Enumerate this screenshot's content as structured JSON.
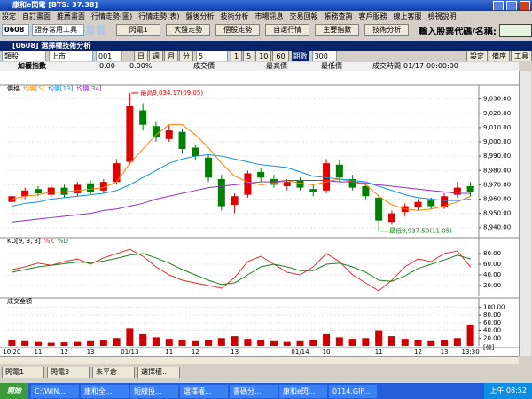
{
  "window": {
    "title": "康和e閃電 [BTS: 37.38]"
  },
  "menu": [
    "設定",
    "自訂畫面",
    "推薦畫面",
    "行情走勢(圖)",
    "行情走勢(表)",
    "盤後分析",
    "技術分析",
    "市場訊息",
    "交易回報",
    "帳務查詢",
    "客戶服務",
    "線上客服",
    "檢視說明"
  ],
  "toolbar": {
    "code": "0608",
    "tools": "證券常用工具",
    "buttons": [
      "閃電1",
      "大盤走勢",
      "個股走勢",
      "自選行情",
      "主要指數",
      "技術分析"
    ],
    "search_label": "輸入股票代碼/名稱:"
  },
  "panel": {
    "title": "[0608] 選擇權技術分析",
    "sector": "類股",
    "market": "上市",
    "code": "001",
    "periods": [
      "日",
      "週",
      "月",
      "分"
    ],
    "interval": "5",
    "minutes": [
      "1",
      "5",
      "10",
      "60"
    ],
    "count_label": "期數",
    "count": "300",
    "actions": [
      "設定",
      "備序",
      "工具"
    ]
  },
  "info": {
    "index_label": "加權指數",
    "change": "0.00",
    "pct": "0.00%",
    "price_label": "成交價",
    "high_label": "最高價",
    "low_label": "最低價",
    "time_label": "成交時間",
    "time": "01/17-00:00:00"
  },
  "chart_data": [
    {
      "type": "candlestick",
      "legend_label": "價格",
      "up_color": "#e00000",
      "down_color": "#008000",
      "categories": [
        "10:20",
        null,
        "11",
        null,
        "12",
        null,
        "13",
        null,
        null,
        "01/13",
        null,
        null,
        "11",
        null,
        "12",
        null,
        null,
        "13",
        null,
        null,
        null,
        null,
        "01/14",
        null,
        "10",
        null,
        null,
        null,
        "11",
        null,
        null,
        "12",
        null,
        "13",
        null,
        "13:30"
      ],
      "open": [
        8958,
        8962,
        8967,
        8963,
        8968,
        8964,
        8971,
        8966,
        8972,
        8986,
        9022,
        9011,
        9002,
        9007,
        8996,
        8989,
        8974,
        8956,
        8963,
        8979,
        8974,
        8969,
        8973,
        8967,
        8966,
        8984,
        8974,
        8969,
        8961,
        8944,
        8951,
        8954,
        8959,
        8954,
        8963,
        8969
      ],
      "high": [
        8964,
        8968,
        8969,
        8970,
        8970,
        8972,
        8973,
        8974,
        8988,
        9034.17,
        9027,
        9014,
        9012,
        9009,
        8998,
        8991,
        8977,
        8964,
        8980,
        8982,
        8977,
        8974,
        8975,
        8970,
        8988,
        8987,
        8977,
        8971,
        8963,
        8952,
        8957,
        8960,
        8961,
        8964,
        8972,
        8972
      ],
      "low": [
        8955,
        8960,
        8962,
        8961,
        8961,
        8962,
        8963,
        8964,
        8970,
        8984,
        9008,
        9000,
        9000,
        8992,
        8987,
        8972,
        8952,
        8950,
        8961,
        8972,
        8968,
        8966,
        8966,
        8962,
        8964,
        8972,
        8966,
        8960,
        8937.5,
        8942,
        8948,
        8952,
        8953,
        8953,
        8961,
        8962
      ],
      "close": [
        8962,
        8966,
        8964,
        8968,
        8963,
        8970,
        8965,
        8972,
        8985,
        9025,
        9012,
        9003,
        9008,
        8995,
        8990,
        8975,
        8955,
        8962,
        8978,
        8975,
        8970,
        8972,
        8968,
        8965,
        8985,
        8975,
        8968,
        8962,
        8945,
        8950,
        8955,
        8958,
        8955,
        8962,
        8968,
        8965
      ],
      "series": [
        {
          "name": "均價[5]",
          "color": "#ff8000",
          "values": [
            8960,
            8962,
            8963,
            8965,
            8965,
            8966,
            8967,
            8968,
            8972,
            8985,
            8995,
            9005,
            9012,
            9012,
            9005,
            8996,
            8985,
            8976,
            8972,
            8970,
            8971,
            8973,
            8971,
            8970,
            8972,
            8974,
            8972,
            8970,
            8962,
            8956,
            8953,
            8952,
            8953,
            8955,
            8958,
            8962
          ]
        },
        {
          "name": "均價[13]",
          "color": "#1090e0",
          "values": [
            8955,
            8957,
            8958,
            8960,
            8961,
            8962,
            8963,
            8964,
            8966,
            8970,
            8975,
            8980,
            8985,
            8988,
            8990,
            8991,
            8990,
            8988,
            8986,
            8984,
            8983,
            8982,
            8979,
            8976,
            8975,
            8974,
            8973,
            8972,
            8969,
            8966,
            8963,
            8961,
            8960,
            8959,
            8959,
            8960
          ]
        },
        {
          "name": "均價[34]",
          "color": "#9030c0",
          "values": [
            8944,
            8945,
            8946,
            8947,
            8948,
            8949,
            8950,
            8952,
            8953,
            8955,
            8957,
            8960,
            8962,
            8964,
            8966,
            8968,
            8969,
            8970,
            8971,
            8972,
            8972,
            8973,
            8973,
            8973,
            8973,
            8972,
            8972,
            8971,
            8970,
            8969,
            8968,
            8967,
            8966,
            8965,
            8964,
            8964
          ]
        }
      ],
      "annotations": {
        "high": "最高9,034.17(09.05)",
        "low": "最低8,937.50(11.05)"
      },
      "ylim": [
        8933,
        9036
      ],
      "yticks": [
        {
          "value": 9030,
          "label": "9,030.00"
        },
        {
          "value": 9020,
          "label": "9,020.00"
        },
        {
          "value": 9010,
          "label": "9,010.00"
        },
        {
          "value": 9000,
          "label": "9,000.00"
        },
        {
          "value": 8990,
          "label": "8,990.00"
        },
        {
          "value": 8980,
          "label": "8,980.00"
        },
        {
          "value": 8970,
          "label": "8,970.00"
        },
        {
          "value": 8960,
          "label": "8,960.00"
        },
        {
          "value": 8950,
          "label": "8,950.00"
        },
        {
          "value": 8940,
          "label": "8,940.00"
        }
      ]
    },
    {
      "type": "line",
      "title": "KD[9, 3, 3]",
      "series": [
        {
          "name": "%K",
          "color": "#e03030",
          "values": [
            50,
            55,
            62,
            58,
            65,
            70,
            60,
            72,
            80,
            88,
            75,
            55,
            40,
            30,
            25,
            20,
            15,
            35,
            65,
            75,
            60,
            45,
            40,
            55,
            80,
            65,
            40,
            25,
            10,
            30,
            55,
            70,
            65,
            80,
            85,
            55
          ]
        },
        {
          "name": "%D",
          "color": "#208020",
          "values": [
            45,
            50,
            55,
            58,
            61,
            64,
            63,
            66,
            71,
            77,
            80,
            72,
            62,
            50,
            40,
            30,
            22,
            25,
            40,
            55,
            60,
            55,
            48,
            48,
            60,
            62,
            55,
            45,
            30,
            28,
            38,
            52,
            60,
            68,
            77,
            70
          ]
        }
      ],
      "ylim": [
        0,
        100
      ],
      "yticks": [
        {
          "value": 80,
          "label": "80.00"
        },
        {
          "value": 60,
          "label": "60.00"
        },
        {
          "value": 40,
          "label": "40.00"
        },
        {
          "value": 20,
          "label": "20.00"
        }
      ]
    },
    {
      "type": "bar",
      "title": "成交金額",
      "color": "#d00000",
      "unit": "[億]",
      "values": [
        15,
        12,
        10,
        8,
        9,
        10,
        12,
        14,
        20,
        45,
        30,
        22,
        18,
        15,
        12,
        14,
        20,
        25,
        18,
        15,
        12,
        10,
        12,
        14,
        30,
        22,
        18,
        20,
        40,
        25,
        18,
        15,
        12,
        15,
        20,
        55
      ],
      "ylim": [
        0,
        110
      ],
      "yticks": [
        {
          "value": 100,
          "label": "100.00"
        },
        {
          "value": 80,
          "label": "80.00"
        },
        {
          "value": 60,
          "label": "60.00"
        },
        {
          "value": 40,
          "label": "40.00"
        },
        {
          "value": 20,
          "label": "20.00"
        }
      ]
    }
  ],
  "tabs": [
    "閃電1",
    "閃電3",
    "未平倉",
    "選擇權..."
  ],
  "taskbar": {
    "start": "開始",
    "items": [
      "C:\\WIN...",
      "康和全...",
      "短線投...",
      "選擇權...",
      "書碼分...",
      "康和e閃...",
      "0114.GIF..."
    ],
    "clock": "上午 08:52"
  }
}
